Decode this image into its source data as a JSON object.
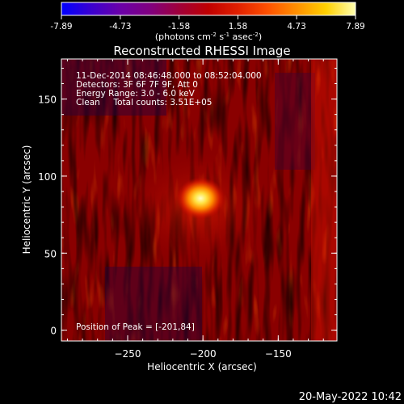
{
  "footer_timestamp": "20-May-2022 10:42",
  "chart_data": {
    "type": "heatmap",
    "title": "Reconstructed RHESSI Image",
    "xlabel": "Heliocentric X (arcsec)",
    "ylabel": "Heliocentric Y (arcsec)",
    "xlim": [
      -294,
      -111
    ],
    "ylim": [
      -7,
      176
    ],
    "xticks": [
      -250,
      -200,
      -150
    ],
    "yticks": [
      0,
      50,
      100,
      150
    ],
    "colorbar": {
      "min": -7.89,
      "max": 7.89,
      "ticks": [
        "-7.89",
        "-4.73",
        "-1.58",
        "1.58",
        "4.73",
        "7.89"
      ],
      "units_prefix": "(photons cm",
      "units_sup1": "-2",
      "units_mid": " s",
      "units_sup2": "-1",
      "units_suffix": " asec",
      "units_sup3": "-2",
      "units_end": ")",
      "colors": [
        "#0000ff",
        "#3a00d0",
        "#6a00a8",
        "#800080",
        "#a0003a",
        "#c00000",
        "#e02000",
        "#ff5000",
        "#ff9000",
        "#ffd000",
        "#ffffb0"
      ]
    },
    "annotations": [
      "11-Dec-2014 08:46:48.000 to 08:52:04.000",
      "Detectors: 3F 6F 7F 9F, Att 0",
      "Energy Range: 3.0 - 6.0 keV",
      "Clean     Total counts: 3.51E+05"
    ],
    "peak_label": "Position of Peak = [-201,84]",
    "peak": {
      "x": -201,
      "y": 84,
      "value": 7.89
    }
  }
}
